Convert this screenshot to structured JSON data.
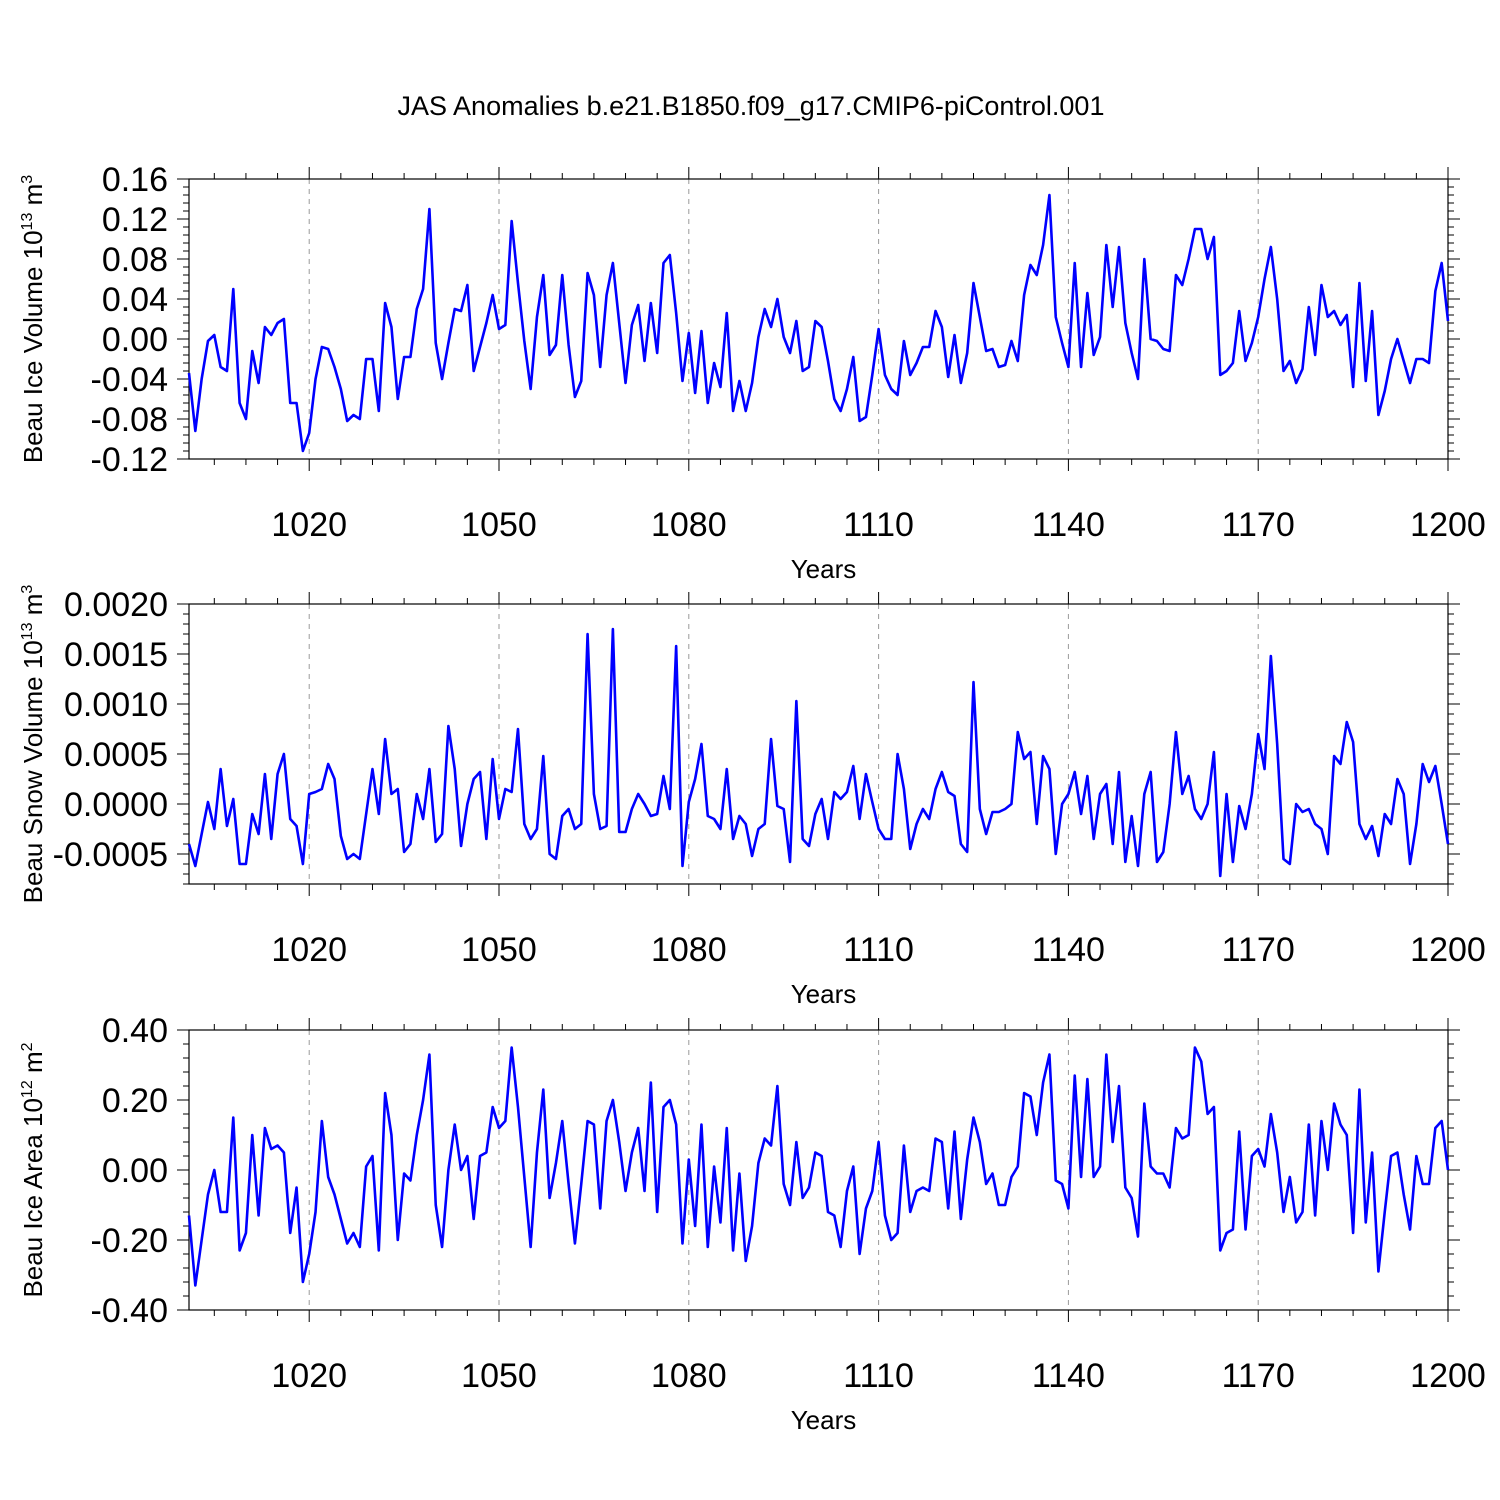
{
  "title": "JAS Anomalies b.e21.B1850.f09_g17.CMIP6-piControl.001",
  "chart_data": [
    {
      "type": "line",
      "ylabel": "Beau Ice Volume 10",
      "ylabel_sup": "13",
      "ylabel_unit": " m",
      "ylabel_unit_sup": "3",
      "xlabel": "Years",
      "xlim": [
        1001,
        1200
      ],
      "ylim": [
        -0.12,
        0.16
      ],
      "yticks": [
        -0.12,
        -0.08,
        -0.04,
        0.0,
        0.04,
        0.08,
        0.12,
        0.16
      ],
      "ytick_labels": [
        "-0.12",
        "-0.08",
        "-0.04",
        "0.00",
        "0.04",
        "0.08",
        "0.12",
        "0.16"
      ],
      "yminor_step": 0.008,
      "xticks": [
        1020,
        1050,
        1080,
        1110,
        1140,
        1170,
        1200
      ],
      "xtick_labels": [
        "1020",
        "1050",
        "1080",
        "1110",
        "1140",
        "1170",
        "1200"
      ],
      "xminor_step": 5,
      "series": [
        {
          "name": "Beau Ice Volume",
          "color": "#0000ff",
          "values": [
            -0.034,
            -0.092,
            -0.04,
            -0.002,
            0.004,
            -0.028,
            -0.032,
            0.05,
            -0.064,
            -0.08,
            -0.012,
            -0.044,
            0.012,
            0.004,
            0.016,
            0.02,
            -0.064,
            -0.064,
            -0.112,
            -0.094,
            -0.04,
            -0.008,
            -0.01,
            -0.028,
            -0.05,
            -0.082,
            -0.076,
            -0.08,
            -0.02,
            -0.02,
            -0.072,
            0.036,
            0.012,
            -0.06,
            -0.018,
            -0.018,
            0.03,
            0.05,
            0.13,
            -0.004,
            -0.04,
            -0.004,
            0.03,
            0.028,
            0.054,
            -0.032,
            -0.008,
            0.016,
            0.044,
            0.01,
            0.014,
            0.118,
            0.056,
            -0.002,
            -0.05,
            0.022,
            0.064,
            -0.016,
            -0.006,
            0.064,
            -0.006,
            -0.058,
            -0.042,
            0.066,
            0.044,
            -0.028,
            0.044,
            0.076,
            0.016,
            -0.044,
            0.014,
            0.034,
            -0.022,
            0.036,
            -0.014,
            0.076,
            0.084,
            0.026,
            -0.042,
            0.006,
            -0.054,
            0.008,
            -0.064,
            -0.024,
            -0.048,
            0.026,
            -0.072,
            -0.042,
            -0.072,
            -0.044,
            0.002,
            0.03,
            0.012,
            0.04,
            0.002,
            -0.014,
            0.018,
            -0.032,
            -0.028,
            0.018,
            0.012,
            -0.022,
            -0.06,
            -0.072,
            -0.05,
            -0.018,
            -0.082,
            -0.078,
            -0.036,
            0.01,
            -0.036,
            -0.05,
            -0.056,
            -0.002,
            -0.036,
            -0.024,
            -0.008,
            -0.008,
            0.028,
            0.012,
            -0.038,
            0.004,
            -0.044,
            -0.014,
            0.056,
            0.022,
            -0.012,
            -0.01,
            -0.028,
            -0.026,
            -0.002,
            -0.022,
            0.044,
            0.074,
            0.064,
            0.094,
            0.144,
            0.022,
            -0.004,
            -0.028,
            0.076,
            -0.028,
            0.046,
            -0.016,
            0.002,
            0.094,
            0.032,
            0.092,
            0.016,
            -0.014,
            -0.04,
            0.08,
            0.0,
            -0.002,
            -0.01,
            -0.012,
            0.064,
            0.054,
            0.08,
            0.11,
            0.11,
            0.08,
            0.102,
            -0.036,
            -0.032,
            -0.024,
            0.028,
            -0.022,
            -0.004,
            0.022,
            0.06,
            0.092,
            0.04,
            -0.032,
            -0.022,
            -0.044,
            -0.03,
            0.032,
            -0.016,
            0.054,
            0.022,
            0.028,
            0.014,
            0.024,
            -0.048,
            0.056,
            -0.042,
            0.028,
            -0.076,
            -0.052,
            -0.02,
            0.0,
            -0.022,
            -0.044,
            -0.02,
            -0.02,
            -0.024,
            0.048,
            0.076,
            0.018
          ]
        }
      ]
    },
    {
      "type": "line",
      "ylabel": "Beau Snow Volume 10",
      "ylabel_sup": "13",
      "ylabel_unit": " m",
      "ylabel_unit_sup": "3",
      "xlabel": "Years",
      "xlim": [
        1001,
        1200
      ],
      "ylim": [
        -0.0008,
        0.002
      ],
      "yticks": [
        -0.0005,
        0.0,
        0.0005,
        0.001,
        0.0015,
        0.002
      ],
      "ytick_labels": [
        "-0.0005",
        "0.0000",
        "0.0005",
        "0.0010",
        "0.0015",
        "0.0020"
      ],
      "yminor_step": 0.0001,
      "xticks": [
        1020,
        1050,
        1080,
        1110,
        1140,
        1170,
        1200
      ],
      "xtick_labels": [
        "1020",
        "1050",
        "1080",
        "1110",
        "1140",
        "1170",
        "1200"
      ],
      "xminor_step": 5,
      "series": [
        {
          "name": "Beau Snow Volume",
          "color": "#0000ff",
          "values": [
            -0.0004,
            -0.00062,
            -0.0003,
            2e-05,
            -0.00025,
            0.00035,
            -0.00022,
            5e-05,
            -0.0006,
            -0.0006,
            -0.0001,
            -0.0003,
            0.0003,
            -0.00035,
            0.0003,
            0.0005,
            -0.00015,
            -0.00022,
            -0.0006,
            0.0001,
            0.00012,
            0.00015,
            0.0004,
            0.00025,
            -0.00032,
            -0.00055,
            -0.0005,
            -0.00055,
            -0.0001,
            0.00035,
            -0.0001,
            0.00065,
            0.0001,
            0.00015,
            -0.00048,
            -0.0004,
            0.0001,
            -0.00015,
            0.00035,
            -0.00038,
            -0.0003,
            0.00078,
            0.00035,
            -0.00042,
            0.0,
            0.00025,
            0.00032,
            -0.00035,
            0.00045,
            -0.00015,
            0.00015,
            0.00012,
            0.00075,
            -0.0002,
            -0.00035,
            -0.00025,
            0.00048,
            -0.0005,
            -0.00055,
            -0.00012,
            -5e-05,
            -0.00025,
            -0.0002,
            0.0017,
            0.0001,
            -0.00025,
            -0.00022,
            0.00175,
            -0.00028,
            -0.00028,
            -5e-05,
            0.0001,
            0.0,
            -0.00012,
            -0.0001,
            0.00028,
            -5e-05,
            0.00158,
            -0.00062,
            2e-05,
            0.00025,
            0.0006,
            -0.00012,
            -0.00015,
            -0.00025,
            0.00035,
            -0.00035,
            -0.00012,
            -0.0002,
            -0.00052,
            -0.00025,
            -0.0002,
            0.00065,
            -2e-05,
            -5e-05,
            -0.00058,
            0.00103,
            -0.00035,
            -0.00042,
            -0.0001,
            5e-05,
            -0.00035,
            0.00012,
            5e-05,
            0.00012,
            0.00038,
            -0.00015,
            0.0003,
            2e-05,
            -0.00025,
            -0.00035,
            -0.00035,
            0.0005,
            0.00015,
            -0.00045,
            -0.0002,
            -5e-05,
            -0.00015,
            0.00015,
            0.00032,
            0.00012,
            8e-05,
            -0.0004,
            -0.00048,
            0.00122,
            -5e-05,
            -0.0003,
            -8e-05,
            -8e-05,
            -5e-05,
            0.0,
            0.00072,
            0.00045,
            0.00052,
            -0.0002,
            0.00048,
            0.00035,
            -0.0005,
            0.0,
            0.0001,
            0.00032,
            -0.0001,
            0.00028,
            -0.00035,
            0.0001,
            0.0002,
            -0.0004,
            0.00032,
            -0.00058,
            -0.00012,
            -0.00062,
            0.0001,
            0.00032,
            -0.00058,
            -0.00048,
            0.0,
            0.00072,
            0.0001,
            0.00028,
            -5e-05,
            -0.00015,
            0.0,
            0.00052,
            -0.00072,
            0.0001,
            -0.00058,
            -2e-05,
            -0.00025,
            0.0001,
            0.0007,
            0.00035,
            0.00148,
            0.0006,
            -0.00055,
            -0.0006,
            0.0,
            -8e-05,
            -5e-05,
            -0.0002,
            -0.00025,
            -0.0005,
            0.00048,
            0.0004,
            0.00082,
            0.00062,
            -0.0002,
            -0.00035,
            -0.00022,
            -0.00052,
            -0.0001,
            -0.0002,
            0.00025,
            0.0001,
            -0.0006,
            -0.0002,
            0.0004,
            0.00022,
            0.00038,
            0.0,
            -0.0004
          ]
        }
      ]
    },
    {
      "type": "line",
      "ylabel": "Beau Ice Area 10",
      "ylabel_sup": "12",
      "ylabel_unit": " m",
      "ylabel_unit_sup": "2",
      "xlabel": "Years",
      "xlim": [
        1001,
        1200
      ],
      "ylim": [
        -0.4,
        0.4
      ],
      "yticks": [
        -0.4,
        -0.2,
        0.0,
        0.2,
        0.4
      ],
      "ytick_labels": [
        "-0.40",
        "-0.20",
        "0.00",
        "0.20",
        "0.40"
      ],
      "yminor_step": 0.04,
      "xticks": [
        1020,
        1050,
        1080,
        1110,
        1140,
        1170,
        1200
      ],
      "xtick_labels": [
        "1020",
        "1050",
        "1080",
        "1110",
        "1140",
        "1170",
        "1200"
      ],
      "xminor_step": 5,
      "series": [
        {
          "name": "Beau Ice Area",
          "color": "#0000ff",
          "values": [
            -0.13,
            -0.33,
            -0.2,
            -0.07,
            0.0,
            -0.12,
            -0.12,
            0.15,
            -0.23,
            -0.18,
            0.1,
            -0.13,
            0.12,
            0.06,
            0.07,
            0.05,
            -0.18,
            -0.05,
            -0.32,
            -0.24,
            -0.12,
            0.14,
            -0.02,
            -0.07,
            -0.14,
            -0.21,
            -0.18,
            -0.22,
            0.01,
            0.04,
            -0.23,
            0.22,
            0.1,
            -0.2,
            -0.01,
            -0.03,
            0.1,
            0.2,
            0.33,
            -0.1,
            -0.22,
            0.0,
            0.13,
            0.0,
            0.04,
            -0.14,
            0.04,
            0.05,
            0.18,
            0.12,
            0.14,
            0.35,
            0.18,
            -0.02,
            -0.22,
            0.05,
            0.23,
            -0.08,
            0.02,
            0.14,
            -0.04,
            -0.21,
            -0.04,
            0.14,
            0.13,
            -0.11,
            0.14,
            0.2,
            0.08,
            -0.06,
            0.05,
            0.12,
            -0.06,
            0.25,
            -0.12,
            0.18,
            0.2,
            0.13,
            -0.21,
            0.03,
            -0.16,
            0.13,
            -0.22,
            0.01,
            -0.15,
            0.12,
            -0.23,
            -0.01,
            -0.26,
            -0.16,
            0.02,
            0.09,
            0.07,
            0.24,
            -0.04,
            -0.1,
            0.08,
            -0.08,
            -0.05,
            0.05,
            0.04,
            -0.12,
            -0.13,
            -0.22,
            -0.06,
            0.01,
            -0.24,
            -0.11,
            -0.06,
            0.08,
            -0.13,
            -0.2,
            -0.18,
            0.07,
            -0.12,
            -0.06,
            -0.05,
            -0.06,
            0.09,
            0.08,
            -0.11,
            0.11,
            -0.14,
            0.03,
            0.15,
            0.08,
            -0.04,
            -0.01,
            -0.1,
            -0.1,
            -0.02,
            0.01,
            0.22,
            0.21,
            0.1,
            0.25,
            0.33,
            -0.03,
            -0.04,
            -0.11,
            0.27,
            -0.02,
            0.26,
            -0.02,
            0.01,
            0.33,
            0.08,
            0.24,
            -0.05,
            -0.08,
            -0.19,
            0.19,
            0.01,
            -0.01,
            -0.01,
            -0.05,
            0.12,
            0.09,
            0.1,
            0.35,
            0.31,
            0.16,
            0.18,
            -0.23,
            -0.18,
            -0.17,
            0.11,
            -0.17,
            0.04,
            0.06,
            0.01,
            0.16,
            0.05,
            -0.12,
            -0.02,
            -0.15,
            -0.12,
            0.13,
            -0.13,
            0.14,
            0.0,
            0.19,
            0.13,
            0.1,
            -0.18,
            0.23,
            -0.15,
            0.05,
            -0.29,
            -0.12,
            0.04,
            0.05,
            -0.07,
            -0.17,
            0.04,
            -0.04,
            -0.04,
            0.12,
            0.14,
            0.0
          ]
        }
      ]
    }
  ]
}
